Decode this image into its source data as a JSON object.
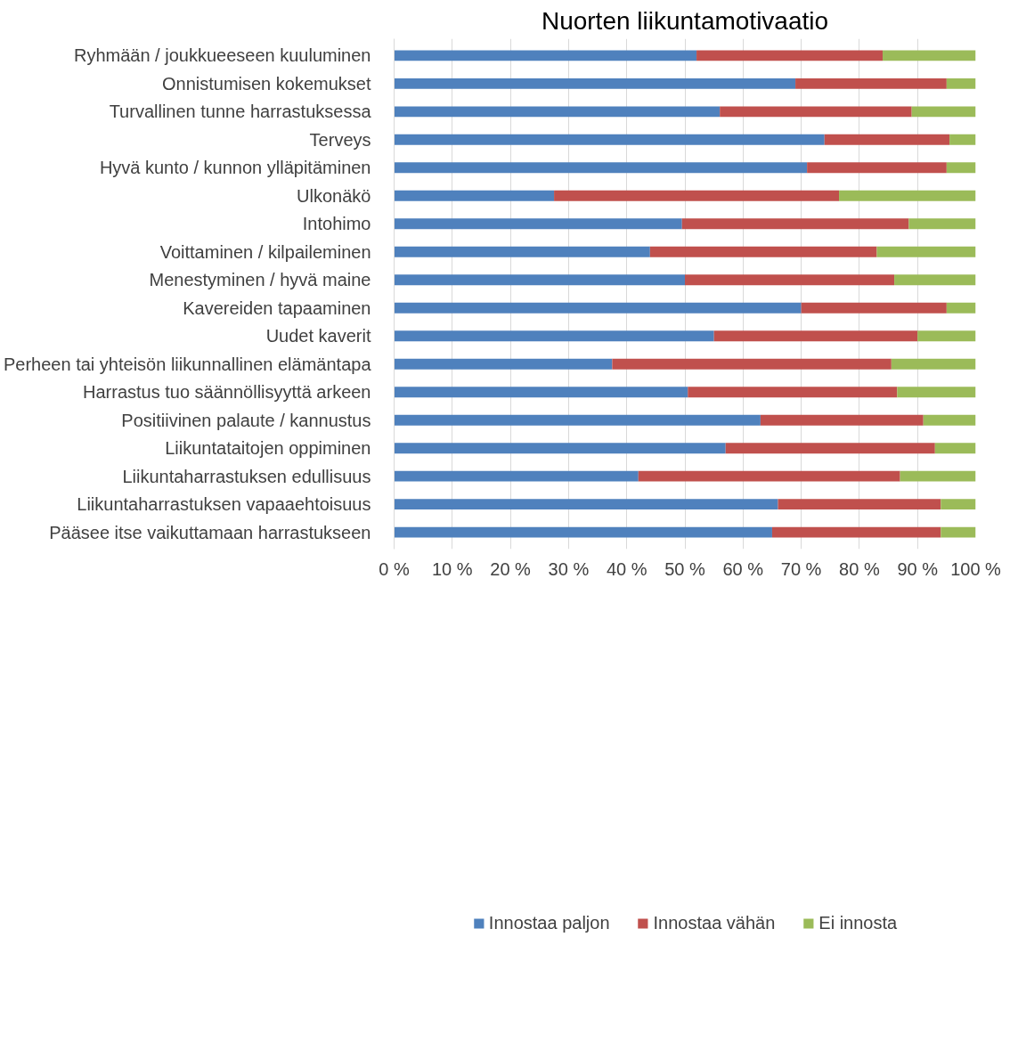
{
  "chart_data": {
    "type": "bar",
    "orientation": "horizontal",
    "stacked": true,
    "title": "Nuorten liikuntamotivaatio",
    "categories": [
      "Ryhmään / joukkueeseen kuuluminen",
      "Onnistumisen kokemukset",
      "Turvallinen tunne harrastuksessa",
      "Terveys",
      "Hyvä kunto / kunnon ylläpitäminen",
      "Ulkonäkö",
      "Intohimo",
      "Voittaminen / kilpaileminen",
      "Menestyminen / hyvä maine",
      "Kavereiden tapaaminen",
      "Uudet kaverit",
      "Perheen tai yhteisön liikunnallinen elämäntapa",
      "Harrastus tuo säännöllisyyttä arkeen",
      "Positiivinen palaute / kannustus",
      "Liikuntataitojen oppiminen",
      "Liikuntaharrastuksen edullisuus",
      "Liikuntaharrastuksen vapaaehtoisuus",
      "Pääsee itse vaikuttamaan harrastukseen"
    ],
    "series": [
      {
        "name": "Innostaa paljon",
        "color": "#4f81bd",
        "values": [
          52,
          69,
          56,
          74,
          71,
          27.5,
          49.5,
          44,
          50,
          70,
          55,
          37.5,
          50.5,
          63,
          57,
          42,
          66,
          65
        ]
      },
      {
        "name": "Innostaa vähän",
        "color": "#c0504d",
        "values": [
          32,
          26,
          33,
          21.5,
          24,
          49,
          39,
          39,
          36,
          25,
          35,
          48,
          36,
          28,
          36,
          45,
          28,
          29
        ]
      },
      {
        "name": "Ei innosta",
        "color": "#9bbb59",
        "values": [
          16,
          5,
          11,
          4.5,
          5,
          23.5,
          11.5,
          17,
          14,
          5,
          10,
          14.5,
          13.5,
          9,
          7,
          13,
          6,
          6
        ]
      }
    ],
    "xlim": [
      0,
      100
    ],
    "xticks": [
      {
        "value": 0,
        "label": "0 %"
      },
      {
        "value": 10,
        "label": "10 %"
      },
      {
        "value": 20,
        "label": "20 %"
      },
      {
        "value": 30,
        "label": "30 %"
      },
      {
        "value": 40,
        "label": "40 %"
      },
      {
        "value": 50,
        "label": "50 %"
      },
      {
        "value": 60,
        "label": "60 %"
      },
      {
        "value": 70,
        "label": "70 %"
      },
      {
        "value": 80,
        "label": "80 %"
      },
      {
        "value": 90,
        "label": "90 %"
      },
      {
        "value": 100,
        "label": "100 %"
      }
    ],
    "grid": "x",
    "legend": "bottom"
  }
}
